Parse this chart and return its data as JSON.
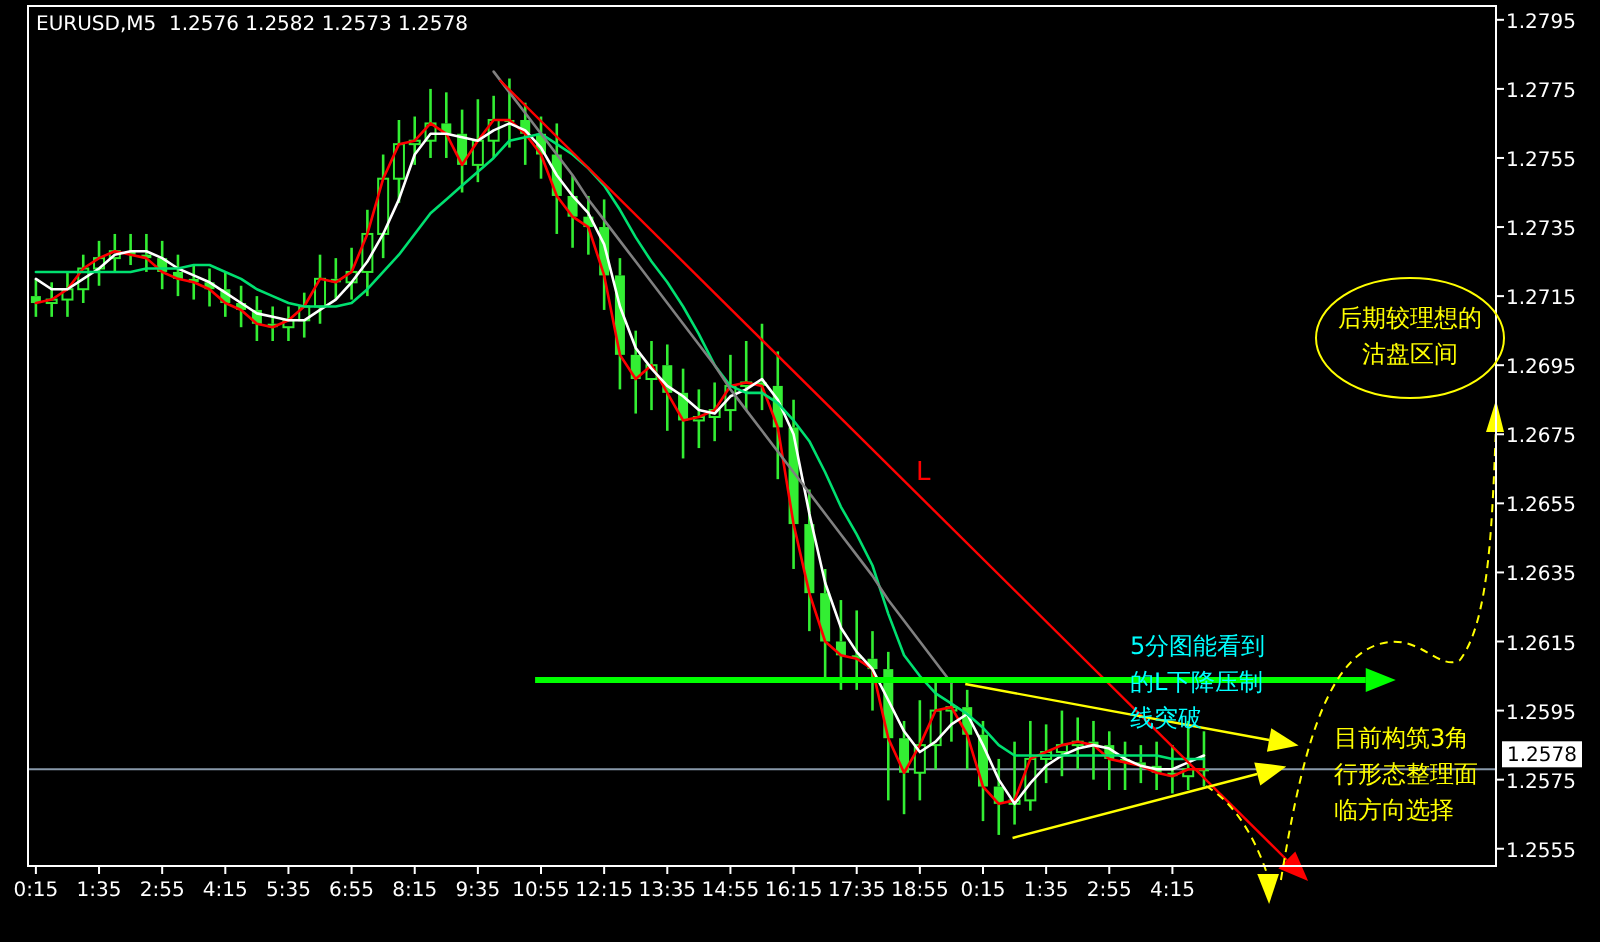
{
  "chart_data": {
    "type": "candlestick",
    "title": "EURUSD,M5  1.2576 1.2582 1.2573 1.2578",
    "color": "#33ee33",
    "categories": [
      "0:15",
      null,
      null,
      null,
      "1:35",
      null,
      null,
      null,
      "2:55",
      null,
      null,
      null,
      "4:15",
      null,
      null,
      null,
      "5:35",
      null,
      null,
      null,
      "6:55",
      null,
      null,
      null,
      "8:15",
      null,
      null,
      null,
      "9:35",
      null,
      null,
      null,
      "10:55",
      null,
      null,
      null,
      "12:15",
      null,
      null,
      null,
      "13:35",
      null,
      null,
      null,
      "14:55",
      null,
      null,
      null,
      "16:15",
      null,
      null,
      null,
      "17:35",
      null,
      null,
      null,
      "18:55",
      null,
      null,
      null,
      "0:15",
      null,
      null,
      null,
      "1:35",
      null,
      null,
      null,
      "2:55",
      null,
      null,
      null,
      "4:15",
      null,
      null,
      null,
      null,
      null,
      null,
      null,
      null,
      null,
      null,
      null,
      null,
      null,
      null,
      null,
      null,
      null,
      null,
      null,
      null
    ],
    "ohlc": [
      [
        1.2715,
        1.272,
        1.2709,
        1.2713
      ],
      [
        1.2713,
        1.2719,
        1.2709,
        1.2714
      ],
      [
        1.2714,
        1.2722,
        1.2709,
        1.2717
      ],
      [
        1.2717,
        1.2727,
        1.2713,
        1.2723
      ],
      [
        1.2723,
        1.2731,
        1.2718,
        1.2726
      ],
      [
        1.2726,
        1.2733,
        1.2722,
        1.2728
      ],
      [
        1.2728,
        1.2733,
        1.2724,
        1.2727
      ],
      [
        1.2727,
        1.2733,
        1.2722,
        1.2726
      ],
      [
        1.2726,
        1.2731,
        1.2717,
        1.2722
      ],
      [
        1.2722,
        1.2727,
        1.2715,
        1.272
      ],
      [
        1.272,
        1.2724,
        1.2714,
        1.2719
      ],
      [
        1.2719,
        1.2723,
        1.2712,
        1.2717
      ],
      [
        1.2717,
        1.2722,
        1.2709,
        1.2713
      ],
      [
        1.2713,
        1.2718,
        1.2706,
        1.2711
      ],
      [
        1.2711,
        1.2715,
        1.2702,
        1.2707
      ],
      [
        1.2707,
        1.2712,
        1.2702,
        1.2706
      ],
      [
        1.2706,
        1.2712,
        1.2702,
        1.2708
      ],
      [
        1.2708,
        1.2716,
        1.2703,
        1.2712
      ],
      [
        1.2712,
        1.2727,
        1.2707,
        1.272
      ],
      [
        1.272,
        1.2726,
        1.2714,
        1.2719
      ],
      [
        1.2719,
        1.2729,
        1.2714,
        1.2722
      ],
      [
        1.2722,
        1.274,
        1.2715,
        1.2733
      ],
      [
        1.2733,
        1.2756,
        1.2726,
        1.2749
      ],
      [
        1.2749,
        1.2766,
        1.2742,
        1.2759
      ],
      [
        1.2759,
        1.2767,
        1.2753,
        1.276
      ],
      [
        1.276,
        1.2775,
        1.2755,
        1.2765
      ],
      [
        1.2765,
        1.2774,
        1.2755,
        1.2762
      ],
      [
        1.2762,
        1.2769,
        1.2745,
        1.2753
      ],
      [
        1.2753,
        1.2772,
        1.2748,
        1.276
      ],
      [
        1.276,
        1.2773,
        1.2755,
        1.2766
      ],
      [
        1.2766,
        1.2778,
        1.2758,
        1.2766
      ],
      [
        1.2766,
        1.2771,
        1.2753,
        1.2762
      ],
      [
        1.2762,
        1.2767,
        1.2749,
        1.2756
      ],
      [
        1.2756,
        1.2765,
        1.2733,
        1.2744
      ],
      [
        1.2744,
        1.275,
        1.2729,
        1.2738
      ],
      [
        1.2738,
        1.2744,
        1.2727,
        1.2735
      ],
      [
        1.2735,
        1.2743,
        1.2711,
        1.2721
      ],
      [
        1.2721,
        1.2726,
        1.2688,
        1.2698
      ],
      [
        1.2698,
        1.2705,
        1.2681,
        1.2691
      ],
      [
        1.2691,
        1.2702,
        1.2682,
        1.2695
      ],
      [
        1.2695,
        1.2701,
        1.2676,
        1.2687
      ],
      [
        1.2687,
        1.2694,
        1.2668,
        1.2679
      ],
      [
        1.2679,
        1.2688,
        1.2671,
        1.268
      ],
      [
        1.268,
        1.269,
        1.2673,
        1.2682
      ],
      [
        1.2682,
        1.2698,
        1.2676,
        1.2689
      ],
      [
        1.2689,
        1.2702,
        1.2682,
        1.269
      ],
      [
        1.269,
        1.2707,
        1.2682,
        1.2689
      ],
      [
        1.2689,
        1.2699,
        1.2662,
        1.2677
      ],
      [
        1.2677,
        1.2685,
        1.2636,
        1.2649
      ],
      [
        1.2649,
        1.2659,
        1.2618,
        1.2629
      ],
      [
        1.2629,
        1.2636,
        1.2604,
        1.2615
      ],
      [
        1.2615,
        1.2627,
        1.2601,
        1.2611
      ],
      [
        1.2611,
        1.2624,
        1.2601,
        1.261
      ],
      [
        1.261,
        1.2618,
        1.2595,
        1.2607
      ],
      [
        1.2607,
        1.2612,
        1.2569,
        1.2587
      ],
      [
        1.2587,
        1.2592,
        1.2565,
        1.2577
      ],
      [
        1.2577,
        1.2598,
        1.2569,
        1.2585
      ],
      [
        1.2585,
        1.2604,
        1.2578,
        1.2595
      ],
      [
        1.2595,
        1.2604,
        1.2586,
        1.2596
      ],
      [
        1.2596,
        1.2601,
        1.2578,
        1.2588
      ],
      [
        1.2588,
        1.2592,
        1.2563,
        1.2573
      ],
      [
        1.2573,
        1.2581,
        1.2559,
        1.2568
      ],
      [
        1.2568,
        1.2586,
        1.2562,
        1.2569
      ],
      [
        1.2569,
        1.2592,
        1.2566,
        1.2581
      ],
      [
        1.2581,
        1.2591,
        1.2574,
        1.2583
      ],
      [
        1.2583,
        1.2595,
        1.2576,
        1.2585
      ],
      [
        1.2585,
        1.2593,
        1.2578,
        1.2586
      ],
      [
        1.2586,
        1.2592,
        1.2575,
        1.2585
      ],
      [
        1.2585,
        1.2589,
        1.2572,
        1.2581
      ],
      [
        1.2581,
        1.2586,
        1.2572,
        1.258
      ],
      [
        1.258,
        1.2585,
        1.2574,
        1.2579
      ],
      [
        1.2579,
        1.2586,
        1.2572,
        1.2577
      ],
      [
        1.2577,
        1.2585,
        1.2571,
        1.2576
      ],
      [
        1.2576,
        1.2592,
        1.2572,
        1.2578
      ],
      [
        1.2578,
        1.2589,
        1.2573,
        1.2578
      ],
      null,
      null,
      null,
      null,
      null,
      null,
      null,
      null,
      null,
      null,
      null,
      null,
      null,
      null,
      null,
      null,
      null,
      null
    ],
    "series": [
      {
        "type": "line",
        "color": "#ff0000",
        "values": [
          1.2713,
          1.2714,
          1.2717,
          1.2723,
          1.2726,
          1.2728,
          1.2727,
          1.2726,
          1.2722,
          1.272,
          1.2719,
          1.2717,
          1.2713,
          1.2711,
          1.2707,
          1.2706,
          1.2708,
          1.2712,
          1.272,
          1.2719,
          1.2722,
          1.2733,
          1.2749,
          1.2759,
          1.276,
          1.2765,
          1.2762,
          1.2753,
          1.276,
          1.2766,
          1.2766,
          1.2762,
          1.2756,
          1.2744,
          1.2738,
          1.2735,
          1.2721,
          1.2698,
          1.2691,
          1.2695,
          1.2687,
          1.2679,
          1.268,
          1.2682,
          1.2689,
          1.269,
          1.2689,
          1.2677,
          1.2649,
          1.2629,
          1.2615,
          1.2611,
          1.261,
          1.2607,
          1.2587,
          1.2577,
          1.2585,
          1.2595,
          1.2596,
          1.2588,
          1.2573,
          1.2568,
          1.2569,
          1.2581,
          1.2583,
          1.2585,
          1.2586,
          1.2585,
          1.2581,
          1.258,
          1.2579,
          1.2577,
          1.2576,
          1.2578,
          1.2578,
          null,
          null,
          null,
          null,
          null,
          null,
          null,
          null,
          null,
          null,
          null,
          null,
          null,
          null,
          null,
          null,
          null,
          null
        ]
      },
      {
        "type": "line",
        "color": "#ffffff",
        "values": [
          1.272,
          1.2717,
          1.2717,
          1.272,
          1.2723,
          1.2727,
          1.2728,
          1.2728,
          1.2726,
          1.2723,
          1.2721,
          1.2719,
          1.2716,
          1.2713,
          1.271,
          1.2709,
          1.2708,
          1.2708,
          1.2711,
          1.2714,
          1.2719,
          1.2725,
          1.2733,
          1.2743,
          1.2756,
          1.2762,
          1.2762,
          1.2761,
          1.276,
          1.2763,
          1.2765,
          1.2763,
          1.2758,
          1.275,
          1.2744,
          1.2739,
          1.273,
          1.2712,
          1.27,
          1.2694,
          1.2689,
          1.2686,
          1.2682,
          1.2681,
          1.2686,
          1.2688,
          1.2691,
          1.2685,
          1.2675,
          1.2652,
          1.2632,
          1.2619,
          1.2612,
          1.2607,
          1.2598,
          1.2589,
          1.2583,
          1.2586,
          1.2591,
          1.2594,
          1.2585,
          1.2575,
          1.2568,
          1.2574,
          1.2579,
          1.2582,
          1.2584,
          1.2585,
          1.2584,
          1.2581,
          1.2579,
          1.2578,
          1.2578,
          1.258,
          1.2582,
          null,
          null,
          null,
          null,
          null,
          null,
          null,
          null,
          null,
          null,
          null,
          null,
          null,
          null,
          null,
          null,
          null,
          null
        ]
      },
      {
        "type": "line",
        "color": "#00e070",
        "values": [
          1.2722,
          1.2722,
          1.2722,
          1.2722,
          1.2722,
          1.2722,
          1.2722,
          1.2723,
          1.2723,
          1.2723,
          1.2724,
          1.2724,
          1.2722,
          1.272,
          1.2717,
          1.2715,
          1.2713,
          1.2712,
          1.2712,
          1.2712,
          1.2713,
          1.2717,
          1.2722,
          1.2727,
          1.2733,
          1.2739,
          1.2743,
          1.2747,
          1.2751,
          1.2755,
          1.276,
          1.2761,
          1.2762,
          1.2759,
          1.2756,
          1.2752,
          1.2747,
          1.274,
          1.2732,
          1.2725,
          1.2719,
          1.2712,
          1.2704,
          1.2695,
          1.2689,
          1.2687,
          1.2687,
          1.2684,
          1.2679,
          1.2673,
          1.2664,
          1.2654,
          1.2646,
          1.2637,
          1.2623,
          1.2611,
          1.2605,
          1.26,
          1.2597,
          1.2594,
          1.259,
          1.2585,
          1.2582,
          1.2582,
          1.2582,
          1.2582,
          1.2582,
          1.2582,
          1.2582,
          1.2582,
          1.2582,
          1.2582,
          1.2581,
          1.2581,
          1.2581,
          null,
          null,
          null,
          null,
          null,
          null,
          null,
          null,
          null,
          null,
          null,
          null,
          null,
          null,
          null,
          null,
          null,
          null
        ]
      },
      {
        "type": "line",
        "color": "#808080",
        "values": [
          null,
          null,
          null,
          null,
          null,
          null,
          null,
          null,
          null,
          null,
          null,
          null,
          null,
          null,
          null,
          null,
          null,
          null,
          null,
          null,
          null,
          null,
          null,
          null,
          null,
          null,
          null,
          null,
          null,
          1.278,
          1.2774,
          1.2768,
          1.2762,
          1.2756,
          1.275,
          1.2743,
          1.2737,
          1.2731,
          1.2725,
          1.2719,
          1.2713,
          1.2707,
          1.2701,
          1.2695,
          1.2688,
          1.2682,
          1.2676,
          1.267,
          1.2664,
          1.2658,
          1.2652,
          1.2646,
          1.264,
          1.2634,
          1.2627,
          1.2621,
          1.2615,
          1.2609,
          1.2603,
          null,
          null,
          null,
          null,
          null,
          null,
          null,
          null,
          null,
          null,
          null,
          null,
          null,
          null,
          null,
          null,
          null,
          null,
          null,
          null,
          null,
          null,
          null,
          null,
          null,
          null,
          null,
          null,
          null,
          null,
          null,
          null,
          null,
          null
        ]
      }
    ],
    "ylim": [
      1.255,
      1.2799
    ],
    "yticks": [
      1.2555,
      1.2575,
      1.2595,
      1.2615,
      1.2635,
      1.2655,
      1.2675,
      1.2695,
      1.2715,
      1.2735,
      1.2755,
      1.2775,
      1.2795
    ],
    "ref_lines": [
      {
        "axis": "y",
        "value": 1.2578,
        "label": "1.2578",
        "color": "#8899aa"
      }
    ],
    "annotations": [
      "L",
      "5分图能看到的L下降压制线突破",
      "目前构筑3角行形态整理面临方向选择",
      "后期较理想的沽盘区间"
    ]
  }
}
